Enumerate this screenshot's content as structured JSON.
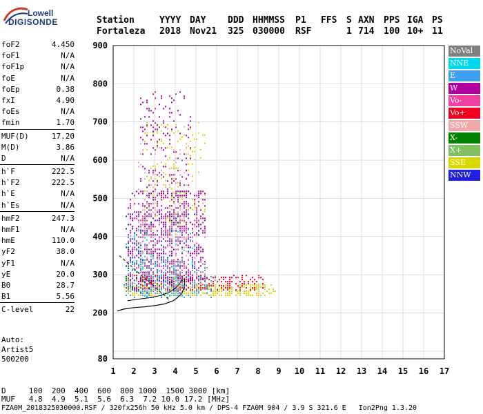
{
  "logo": {
    "top": "Lowell",
    "bottom": "DIGISONDE"
  },
  "header": {
    "row1": [
      "Station",
      "YYYY",
      "DAY",
      "DDD",
      "HHMMSS",
      "P1",
      "FFS",
      "S",
      "AXN",
      "PPS",
      "IGA",
      "PS"
    ],
    "row2": [
      "Fortaleza",
      "2018",
      "Nov21",
      "325",
      "030000",
      "RSF",
      "1",
      "714",
      "100",
      "10+",
      "11"
    ]
  },
  "params": [
    [
      {
        "label": "foF2",
        "value": "4.450"
      },
      {
        "label": "foF1",
        "value": "N/A"
      },
      {
        "label": "foF1p",
        "value": "N/A"
      },
      {
        "label": "foE",
        "value": "N/A"
      },
      {
        "label": "foEp",
        "value": "0.38"
      },
      {
        "label": "fxI",
        "value": "4.90"
      },
      {
        "label": "foEs",
        "value": "N/A"
      },
      {
        "label": "fmin",
        "value": "1.70"
      }
    ],
    [
      {
        "label": "MUF(D)",
        "value": "17.20"
      },
      {
        "label": "M(D)",
        "value": "3.86"
      },
      {
        "label": "D",
        "value": "N/A"
      }
    ],
    [
      {
        "label": "h`F",
        "value": "222.5"
      },
      {
        "label": "h`F2",
        "value": "222.5"
      },
      {
        "label": "h`E",
        "value": "N/A"
      },
      {
        "label": "h`Es",
        "value": "N/A"
      }
    ],
    [
      {
        "label": "hmF2",
        "value": "247.3"
      },
      {
        "label": "hmF1",
        "value": "N/A"
      },
      {
        "label": "hmE",
        "value": "110.0"
      },
      {
        "label": "yF2",
        "value": "38.0"
      },
      {
        "label": "yF1",
        "value": "N/A"
      },
      {
        "label": "yE",
        "value": "20.0"
      },
      {
        "label": "B0",
        "value": "28.7"
      },
      {
        "label": "B1",
        "value": "5.56"
      }
    ],
    [
      {
        "label": "C-level",
        "value": "22"
      }
    ]
  ],
  "auto": [
    "Auto:",
    "Artist5",
    "500200"
  ],
  "legend": [
    {
      "label": "NoVal",
      "color": "#808080"
    },
    {
      "label": "NNE",
      "color": "#00d8f0"
    },
    {
      "label": "E",
      "color": "#40a0f0"
    },
    {
      "label": "W",
      "color": "#b000a0"
    },
    {
      "label": "Vo-",
      "color": "#f040a0"
    },
    {
      "label": "Vo+",
      "color": "#f00020"
    },
    {
      "label": "SSW",
      "color": "#f0a8a8"
    },
    {
      "label": "X-",
      "color": "#008000"
    },
    {
      "label": "X+",
      "color": "#80c060"
    },
    {
      "label": "SSE",
      "color": "#d8d800"
    },
    {
      "label": "NNW",
      "color": "#2020e0"
    }
  ],
  "footer": {
    "line1": "D     100  200  400  600  800 1000  1500 3000 [km]",
    "line2": "MUF   4.8  4.9  5.1  5.6  6.3  7.2 10.0 17.2 [MHz]",
    "line3": "FZA0M_2018325030000.RSF / 320fx256h 50 kHz 5.0 km / DPS-4 FZA0M 904 / 3.9 S 321.6 E   Ion2Png 1.3.20"
  },
  "chart_data": {
    "type": "scatter",
    "xlim": [
      1,
      17
    ],
    "ylim": [
      80,
      900
    ],
    "xticks": [
      "1",
      "2",
      "3",
      "4",
      "5",
      "6",
      "7",
      "8",
      "9",
      "10",
      "11",
      "12",
      "13",
      "14",
      "15",
      "16",
      "17"
    ],
    "yticks": [
      "80",
      "200",
      "300",
      "400",
      "500",
      "600",
      "700",
      "800",
      "900"
    ],
    "ytick_values": [
      80,
      200,
      300,
      400,
      500,
      600,
      700,
      800,
      900
    ],
    "grid": true,
    "profile_curve": [
      [
        1.2,
        205
      ],
      [
        1.5,
        210
      ],
      [
        2.0,
        214
      ],
      [
        2.5,
        216
      ],
      [
        3.0,
        219
      ],
      [
        3.5,
        224
      ],
      [
        3.9,
        232
      ],
      [
        4.1,
        240
      ],
      [
        4.3,
        250
      ],
      [
        4.4,
        262
      ],
      [
        4.45,
        275
      ],
      [
        4.45,
        290
      ]
    ],
    "trace_curve": [
      [
        1.7,
        232
      ],
      [
        2.2,
        236
      ],
      [
        2.8,
        240
      ],
      [
        3.3,
        246
      ],
      [
        3.7,
        254
      ],
      [
        4.0,
        264
      ],
      [
        4.2,
        276
      ],
      [
        4.35,
        290
      ]
    ],
    "dashed_line": [
      [
        1.3,
        350
      ],
      [
        3.7,
        235
      ]
    ],
    "point_clusters": [
      {
        "color": "#d8d800",
        "x": [
          1.5,
          8.9
        ],
        "y": [
          240,
          275
        ],
        "density": 0.45
      },
      {
        "color": "#d8d800",
        "x": [
          2.5,
          5.5
        ],
        "y": [
          400,
          700
        ],
        "density": 0.08
      },
      {
        "color": "#f00020",
        "x": [
          1.6,
          8.3
        ],
        "y": [
          255,
          300
        ],
        "density": 0.35
      },
      {
        "color": "#b000a0",
        "x": [
          1.7,
          5.5
        ],
        "y": [
          280,
          520
        ],
        "density": 0.25
      },
      {
        "color": "#b000a0",
        "x": [
          2.3,
          4.8
        ],
        "y": [
          500,
          780
        ],
        "density": 0.08
      },
      {
        "color": "#40a0f0",
        "x": [
          1.5,
          5.8
        ],
        "y": [
          235,
          340
        ],
        "density": 0.2
      },
      {
        "color": "#00d8f0",
        "x": [
          1.6,
          5.0
        ],
        "y": [
          240,
          420
        ],
        "density": 0.08
      },
      {
        "color": "#f040a0",
        "x": [
          1.7,
          5.5
        ],
        "y": [
          260,
          460
        ],
        "density": 0.12
      },
      {
        "color": "#f0a8a8",
        "x": [
          2.2,
          5.0
        ],
        "y": [
          320,
          650
        ],
        "density": 0.05
      },
      {
        "color": "#80c060",
        "x": [
          1.6,
          6.0
        ],
        "y": [
          250,
          320
        ],
        "density": 0.05
      },
      {
        "color": "#2020e0",
        "x": [
          1.6,
          5.2
        ],
        "y": [
          250,
          460
        ],
        "density": 0.06
      },
      {
        "color": "#008000",
        "x": [
          1.6,
          2.5
        ],
        "y": [
          250,
          330
        ],
        "density": 0.04
      }
    ]
  }
}
